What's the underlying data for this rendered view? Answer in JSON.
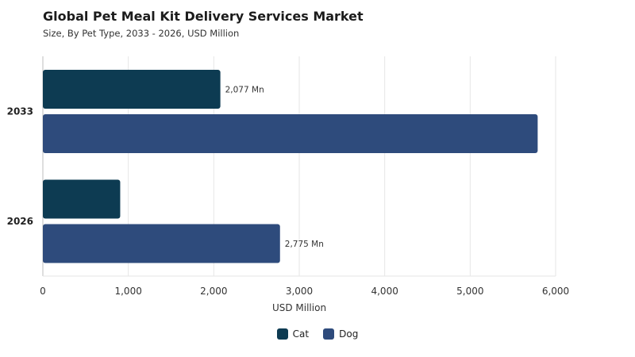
{
  "title": "Global Pet Meal Kit Delivery Services Market",
  "subtitle": "Size, By Pet Type, 2033 - 2026, USD Million",
  "chart_data": {
    "type": "bar",
    "orientation": "horizontal",
    "categories": [
      "2033",
      "2026"
    ],
    "series": [
      {
        "name": "Cat",
        "color": "#0d3b52",
        "values": [
          2077,
          905
        ],
        "labels": [
          "2,077 Mn",
          ""
        ]
      },
      {
        "name": "Dog",
        "color": "#2e4b7c",
        "values": [
          5790,
          2775
        ],
        "labels": [
          "",
          "2,775 Mn"
        ]
      }
    ],
    "xlabel": "USD Million",
    "xlim": [
      0,
      6000
    ],
    "xticks": [
      0,
      1000,
      2000,
      3000,
      4000,
      5000,
      6000
    ],
    "xtick_labels": [
      "0",
      "1,000",
      "2,000",
      "3,000",
      "4,000",
      "5,000",
      "6,000"
    ],
    "grid": true,
    "legend_position": "bottom-center"
  }
}
